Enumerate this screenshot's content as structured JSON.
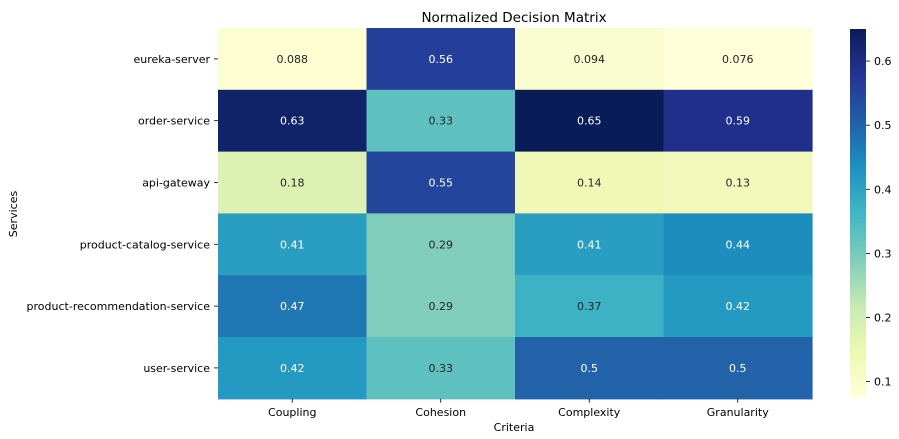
{
  "chart_data": {
    "type": "heatmap",
    "title": "Normalized Decision Matrix",
    "xlabel": "Criteria",
    "ylabel": "Services",
    "columns": [
      "Coupling",
      "Cohesion",
      "Complexity",
      "Granularity"
    ],
    "rows": [
      "eureka-server",
      "order-service",
      "api-gateway",
      "product-catalog-service",
      "product-recommendation-service",
      "user-service"
    ],
    "values": [
      [
        0.088,
        0.56,
        0.094,
        0.076
      ],
      [
        0.63,
        0.33,
        0.65,
        0.59
      ],
      [
        0.18,
        0.55,
        0.14,
        0.13
      ],
      [
        0.41,
        0.29,
        0.41,
        0.44
      ],
      [
        0.47,
        0.29,
        0.37,
        0.42
      ],
      [
        0.42,
        0.33,
        0.5,
        0.5
      ]
    ],
    "cell_labels": [
      [
        "0.088",
        "0.56",
        "0.094",
        "0.076"
      ],
      [
        "0.63",
        "0.33",
        "0.65",
        "0.59"
      ],
      [
        "0.18",
        "0.55",
        "0.14",
        "0.13"
      ],
      [
        "0.41",
        "0.29",
        "0.41",
        "0.44"
      ],
      [
        "0.47",
        "0.29",
        "0.37",
        "0.42"
      ],
      [
        "0.42",
        "0.33",
        "0.5",
        "0.5"
      ]
    ],
    "colormap": "YlGnBu",
    "vmin": 0.076,
    "vmax": 0.65,
    "colorbar_ticks": [
      "0.1",
      "0.2",
      "0.3",
      "0.4",
      "0.5",
      "0.6"
    ],
    "colorbar_tick_values": [
      0.1,
      0.2,
      0.3,
      0.4,
      0.5,
      0.6
    ],
    "colorbar": true,
    "grid": false
  }
}
